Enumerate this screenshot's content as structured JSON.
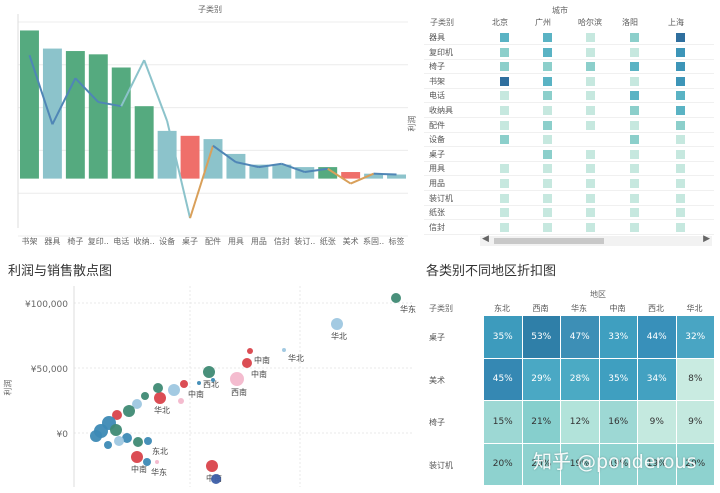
{
  "bar_panel": {
    "title": "子类别",
    "chart_data": {
      "type": "bar",
      "categories": [
        "书架",
        "器具",
        "椅子",
        "复印..",
        "电话",
        "收纳..",
        "设备",
        "桌子",
        "配件",
        "用具",
        "用品",
        "信封",
        "装订..",
        "纸张",
        "美术",
        "系固..",
        "标签"
      ],
      "values": [
        180,
        158,
        155,
        151,
        135,
        88,
        58,
        52,
        48,
        30,
        17,
        17,
        14,
        14,
        8,
        6,
        5
      ],
      "line_values": [
        150,
        66,
        122,
        93,
        88,
        144,
        70,
        -48,
        40,
        20,
        14,
        18,
        8,
        12,
        -6,
        6,
        5
      ],
      "colors": [
        "#55aa7f",
        "#8cc3cb",
        "#55aa7f",
        "#55aa7f",
        "#55aa7f",
        "#55aa7f",
        "#8cc3cb",
        "#ef6f6a",
        "#8cc3cb",
        "#8cc3cb",
        "#8cc3cb",
        "#8cc3cb",
        "#8cc3cb",
        "#55aa7f",
        "#ef6f6a",
        "#8cc3cb",
        "#8cc3cb"
      ],
      "ylim": [
        -60,
        200
      ]
    }
  },
  "heat1": {
    "title": "城市",
    "row_header": "子类别",
    "side_label": "利润",
    "columns": [
      "北京",
      "广州",
      "哈尔滨",
      "洛阳",
      "上海"
    ],
    "rows": [
      {
        "label": "器具",
        "levels": [
          3,
          3,
          1,
          2,
          5
        ]
      },
      {
        "label": "复印机",
        "levels": [
          2,
          3,
          1,
          1,
          4
        ]
      },
      {
        "label": "椅子",
        "levels": [
          2,
          2,
          2,
          3,
          4
        ]
      },
      {
        "label": "书架",
        "levels": [
          5,
          3,
          1,
          1,
          4
        ]
      },
      {
        "label": "电话",
        "levels": [
          1,
          2,
          1,
          3,
          3
        ]
      },
      {
        "label": "收纳具",
        "levels": [
          1,
          1,
          1,
          2,
          3
        ]
      },
      {
        "label": "配件",
        "levels": [
          1,
          2,
          1,
          1,
          2
        ]
      },
      {
        "label": "设备",
        "levels": [
          2,
          1,
          0,
          2,
          1
        ]
      },
      {
        "label": "桌子",
        "levels": [
          0,
          2,
          1,
          1,
          1
        ]
      },
      {
        "label": "用具",
        "levels": [
          1,
          1,
          1,
          1,
          1
        ]
      },
      {
        "label": "用品",
        "levels": [
          1,
          1,
          1,
          1,
          1
        ]
      },
      {
        "label": "装订机",
        "levels": [
          1,
          1,
          1,
          1,
          1
        ]
      },
      {
        "label": "纸张",
        "levels": [
          1,
          1,
          1,
          1,
          1
        ]
      },
      {
        "label": "信封",
        "levels": [
          1,
          1,
          1,
          1,
          1
        ]
      }
    ]
  },
  "scatter": {
    "title": "利润与销售散点图",
    "ylabel": "利润",
    "yticks": [
      "¥100,000",
      "¥50,000",
      "¥0"
    ],
    "points": [
      {
        "x": 396,
        "y": 298,
        "r": 5,
        "c": "#3f8a74",
        "label": "华东"
      },
      {
        "x": 337,
        "y": 324,
        "r": 6,
        "c": "#9ec7e0",
        "label": "华北"
      },
      {
        "x": 250,
        "y": 351,
        "r": 3,
        "c": "#d9434b",
        "label": "中南"
      },
      {
        "x": 284,
        "y": 350,
        "r": 2,
        "c": "#9ec7e0",
        "label": "华北"
      },
      {
        "x": 247,
        "y": 363,
        "r": 5,
        "c": "#d9434b",
        "label": "中南"
      },
      {
        "x": 237,
        "y": 379,
        "r": 7,
        "c": "#f3b8cc",
        "label": "西南"
      },
      {
        "x": 209,
        "y": 372,
        "r": 6,
        "c": "#3f8a74",
        "label": "西北"
      },
      {
        "x": 184,
        "y": 384,
        "r": 4,
        "c": "#d9434b",
        "label": "中南"
      },
      {
        "x": 174,
        "y": 390,
        "r": 6,
        "c": "#9ec7e0",
        "label": ""
      },
      {
        "x": 160,
        "y": 398,
        "r": 6,
        "c": "#d9434b",
        "label": "华北"
      },
      {
        "x": 158,
        "y": 388,
        "r": 5,
        "c": "#3f8a74",
        "label": ""
      },
      {
        "x": 145,
        "y": 396,
        "r": 4,
        "c": "#3f8a74",
        "label": ""
      },
      {
        "x": 137,
        "y": 404,
        "r": 5,
        "c": "#9ec7e0",
        "label": ""
      },
      {
        "x": 129,
        "y": 411,
        "r": 6,
        "c": "#3f8a74",
        "label": ""
      },
      {
        "x": 117,
        "y": 415,
        "r": 5,
        "c": "#d9434b",
        "label": ""
      },
      {
        "x": 109,
        "y": 423,
        "r": 7,
        "c": "#3d8ab5",
        "label": ""
      },
      {
        "x": 101,
        "y": 431,
        "r": 7,
        "c": "#3d8ab5",
        "label": ""
      },
      {
        "x": 96,
        "y": 436,
        "r": 6,
        "c": "#3d8ab5",
        "label": ""
      },
      {
        "x": 116,
        "y": 430,
        "r": 6,
        "c": "#3f8a74",
        "label": ""
      },
      {
        "x": 127,
        "y": 438,
        "r": 5,
        "c": "#3d8ab5",
        "label": ""
      },
      {
        "x": 138,
        "y": 442,
        "r": 5,
        "c": "#3f8a74",
        "label": ""
      },
      {
        "x": 148,
        "y": 441,
        "r": 4,
        "c": "#3d8ab5",
        "label": "东北"
      },
      {
        "x": 119,
        "y": 441,
        "r": 5,
        "c": "#9ec7e0",
        "label": ""
      },
      {
        "x": 108,
        "y": 445,
        "r": 4,
        "c": "#3d8ab5",
        "label": ""
      },
      {
        "x": 137,
        "y": 457,
        "r": 6,
        "c": "#d9434b",
        "label": "中南"
      },
      {
        "x": 147,
        "y": 462,
        "r": 4,
        "c": "#3d8ab5",
        "label": "华东"
      },
      {
        "x": 157,
        "y": 462,
        "r": 2,
        "c": "#f3b8cc",
        "label": ""
      },
      {
        "x": 212,
        "y": 466,
        "r": 6,
        "c": "#d9434b",
        "label": "中南"
      },
      {
        "x": 216,
        "y": 479,
        "r": 5,
        "c": "#3d5fa8",
        "label": ""
      },
      {
        "x": 199,
        "y": 383,
        "r": 2,
        "c": "#3d8ab5",
        "label": ""
      },
      {
        "x": 213,
        "y": 380,
        "r": 2,
        "c": "#3d8ab5",
        "label": ""
      },
      {
        "x": 181,
        "y": 401,
        "r": 3,
        "c": "#f3b8cc",
        "label": ""
      }
    ]
  },
  "heat2": {
    "title": "各类别不同地区折扣图",
    "region_header": "地区",
    "row_header": "子类别",
    "columns": [
      "东北",
      "西南",
      "华东",
      "中南",
      "西北",
      "华北"
    ],
    "rows": [
      {
        "label": "桌子",
        "values": [
          "35%",
          "53%",
          "47%",
          "33%",
          "44%",
          "32%"
        ]
      },
      {
        "label": "美术",
        "values": [
          "45%",
          "29%",
          "28%",
          "35%",
          "34%",
          "8%"
        ]
      },
      {
        "label": "椅子",
        "values": [
          "15%",
          "21%",
          "12%",
          "16%",
          "9%",
          "9%"
        ]
      },
      {
        "label": "装订机",
        "values": [
          "20%",
          "20%",
          "19%",
          "19%",
          "19%",
          "20%"
        ]
      }
    ],
    "colors": [
      [
        "#3d9bbd",
        "#2f7fa8",
        "#3d8fb6",
        "#3f9fc0",
        "#3890ba",
        "#49a5c3"
      ],
      [
        "#3588b3",
        "#4aa8c4",
        "#4baac4",
        "#3f9fc0",
        "#43a1c1",
        "#c9ebe1"
      ],
      [
        "#9dd8d4",
        "#86cfcd",
        "#b2e3da",
        "#9dd8d4",
        "#c4e9df",
        "#c4e9df"
      ],
      [
        "#8ed2cf",
        "#8ed2cf",
        "#90d3d0",
        "#90d3d0",
        "#90d3d0",
        "#8ed2cf"
      ]
    ]
  },
  "watermark": "知乎 @ponderous"
}
